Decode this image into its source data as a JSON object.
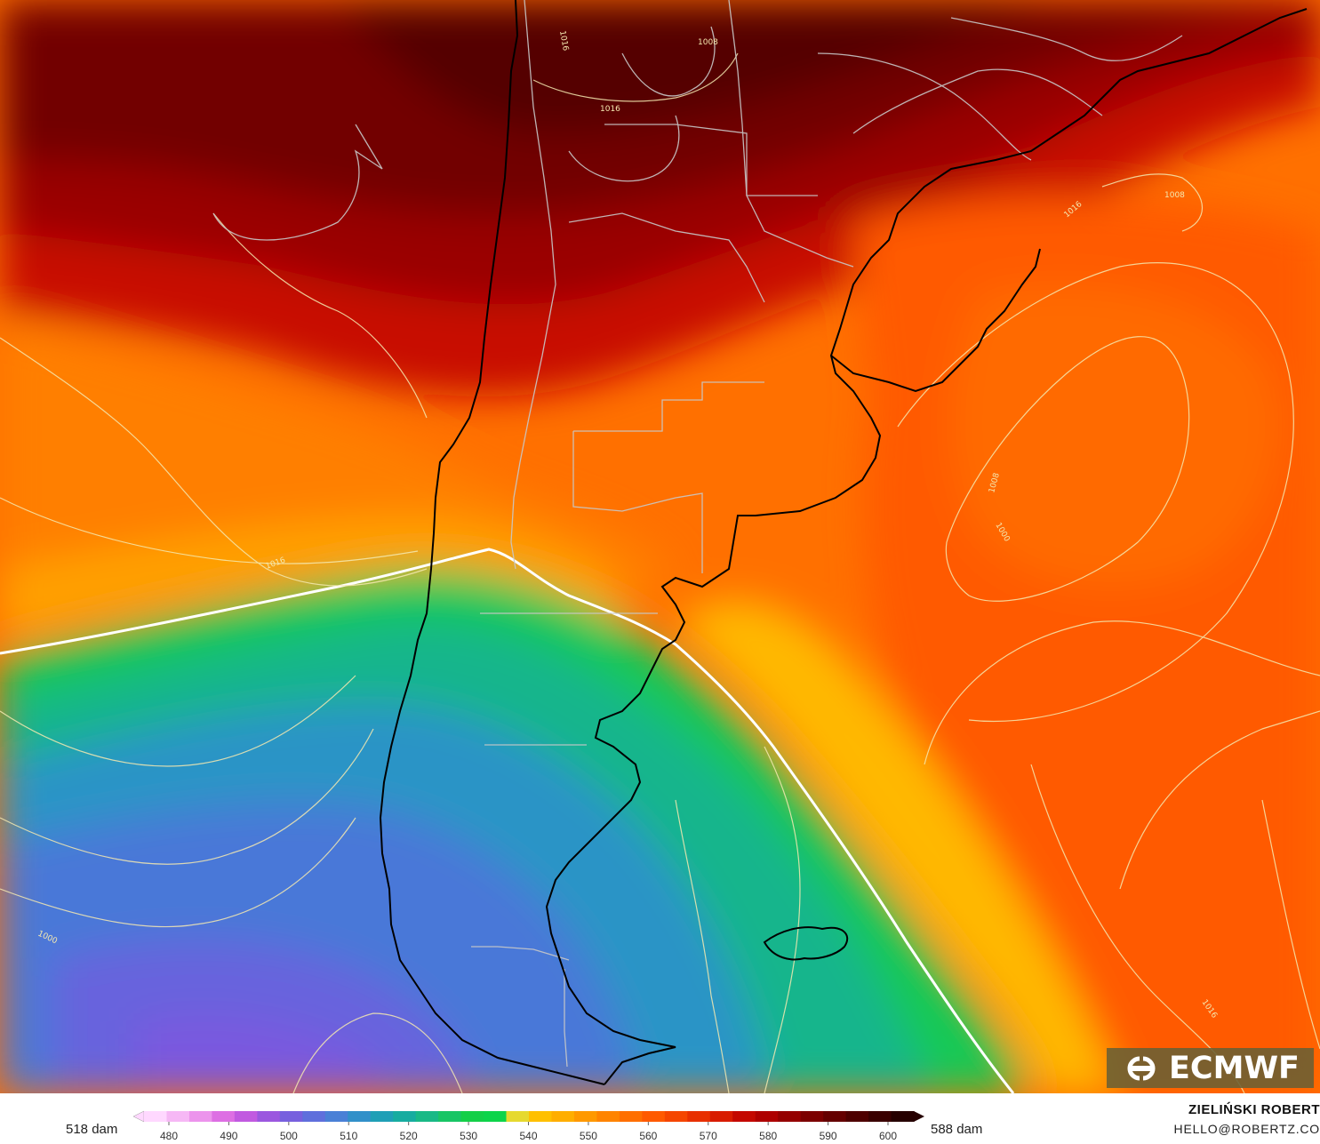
{
  "map": {
    "logo": {
      "text": "ECMWF",
      "icon": "ecmwf-logo-icon"
    },
    "isobar_labels": [
      "1016",
      "1016",
      "1008",
      "1016",
      "1016",
      "1008",
      "1008",
      "1000",
      "1000",
      "1016",
      "1016"
    ],
    "land_outline_color": "#000000",
    "border_color": "#c8c8c8",
    "contour_color": "#f5e9b0"
  },
  "legend": {
    "left_label": "518 dam",
    "right_label": "588 dam",
    "ticks": [
      "480",
      "490",
      "500",
      "510",
      "520",
      "530",
      "540",
      "550",
      "560",
      "570",
      "580",
      "590",
      "600"
    ],
    "range": [
      480,
      600
    ],
    "colors": [
      "#ffd8ff",
      "#f6b8f5",
      "#ec94ec",
      "#dd6fe3",
      "#c15ae0",
      "#9b57df",
      "#7760de",
      "#5f6fdc",
      "#4a80d6",
      "#3190c9",
      "#1f9fb6",
      "#17aca0",
      "#19b986",
      "#18c565",
      "#14cf48",
      "#0dd44a",
      "#e6d92f",
      "#ffc000",
      "#ffae00",
      "#ff9900",
      "#ff8400",
      "#ff6f00",
      "#ff5a00",
      "#f54600",
      "#e83000",
      "#d81c00",
      "#c40800",
      "#ae0000",
      "#950000",
      "#7c0000",
      "#650000",
      "#4e0000",
      "#3a0000",
      "#260000"
    ]
  },
  "author": {
    "name": "ZIELIŃSKI ROBERT",
    "email": "HELLO@ROBERTZ.CO"
  }
}
